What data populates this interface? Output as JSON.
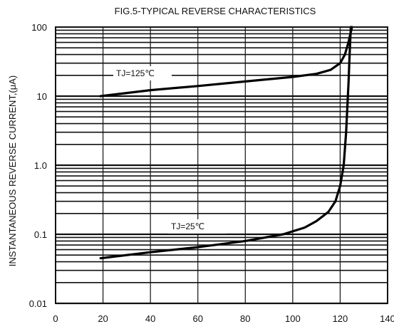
{
  "chart_data": {
    "type": "line",
    "title": "FIG.5-TYPICAL REVERSE CHARACTERISTICS",
    "xlabel": "",
    "ylabel": "INSTANTANEOUS REVERSE CURRENT,(μA)",
    "x_scale": "linear",
    "y_scale": "log",
    "xlim": [
      0,
      140
    ],
    "ylim": [
      0.01,
      100
    ],
    "x_ticks": [
      0,
      20,
      40,
      60,
      80,
      100,
      120,
      140
    ],
    "y_ticks": [
      0.01,
      0.1,
      1.0,
      10,
      100
    ],
    "x_tick_labels": [
      "0",
      "20",
      "40",
      "60",
      "80",
      "100",
      "120",
      "140"
    ],
    "y_tick_labels": [
      "0.01",
      "0.1",
      "1.0",
      "10",
      "100"
    ],
    "grid": true,
    "series": [
      {
        "name": "TJ=125℃",
        "x": [
          19,
          40,
          60,
          80,
          100,
          110,
          116,
          120,
          122,
          123.5,
          124.5,
          125
        ],
        "y": [
          10,
          12.2,
          14,
          16.3,
          19,
          21,
          24,
          30,
          40,
          60,
          85,
          100
        ]
      },
      {
        "name": "TJ=25℃",
        "x": [
          19,
          40,
          60,
          80,
          96,
          105,
          110,
          115,
          118,
          120,
          121.5,
          122.5,
          123.5,
          124,
          124.5
        ],
        "y": [
          0.045,
          0.055,
          0.065,
          0.08,
          0.1,
          0.125,
          0.155,
          0.21,
          0.3,
          0.5,
          1.0,
          3.0,
          15,
          40,
          100
        ]
      }
    ]
  }
}
